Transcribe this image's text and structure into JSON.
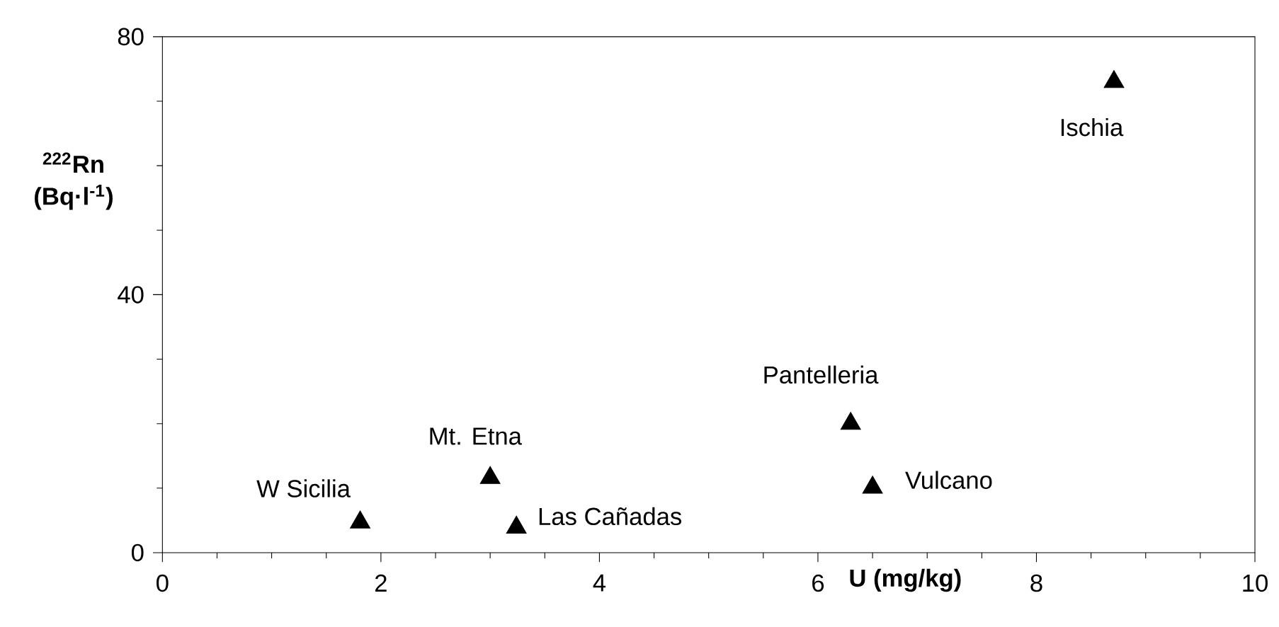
{
  "chart_data": {
    "type": "scatter",
    "xlabel": "U (mg/kg)",
    "ylabel": "$^{222}$Rn (Bq·l$^{-1}$)",
    "x": [
      1.81,
      3.0,
      3.24,
      6.3,
      6.5,
      8.71
    ],
    "series": [
      {
        "color": "#000000",
        "values": [
          4.7,
          11.6,
          3.9,
          20,
          10.1,
          73
        ]
      }
    ],
    "annotations": [
      {
        "text": "W Sicilia",
        "x": 1.81,
        "y": 4.7
      },
      {
        "text": "Mt. Etna",
        "x": 3.0,
        "y": 11.6
      },
      {
        "text": "Las Cañadas",
        "x": 3.24,
        "y": 3.9
      },
      {
        "text": "Pantelleria",
        "x": 6.3,
        "y": 20
      },
      {
        "text": "Vulcano",
        "x": 6.5,
        "y": 10.1
      },
      {
        "text": "Ischia",
        "x": 8.71,
        "y": 73
      }
    ],
    "xlim": [
      0,
      10
    ],
    "ylim": [
      0,
      80
    ],
    "xticks": [
      0,
      2,
      4,
      6,
      8,
      10
    ],
    "yticks": [
      0,
      40,
      80
    ],
    "grid": false,
    "marker": "triangle"
  }
}
